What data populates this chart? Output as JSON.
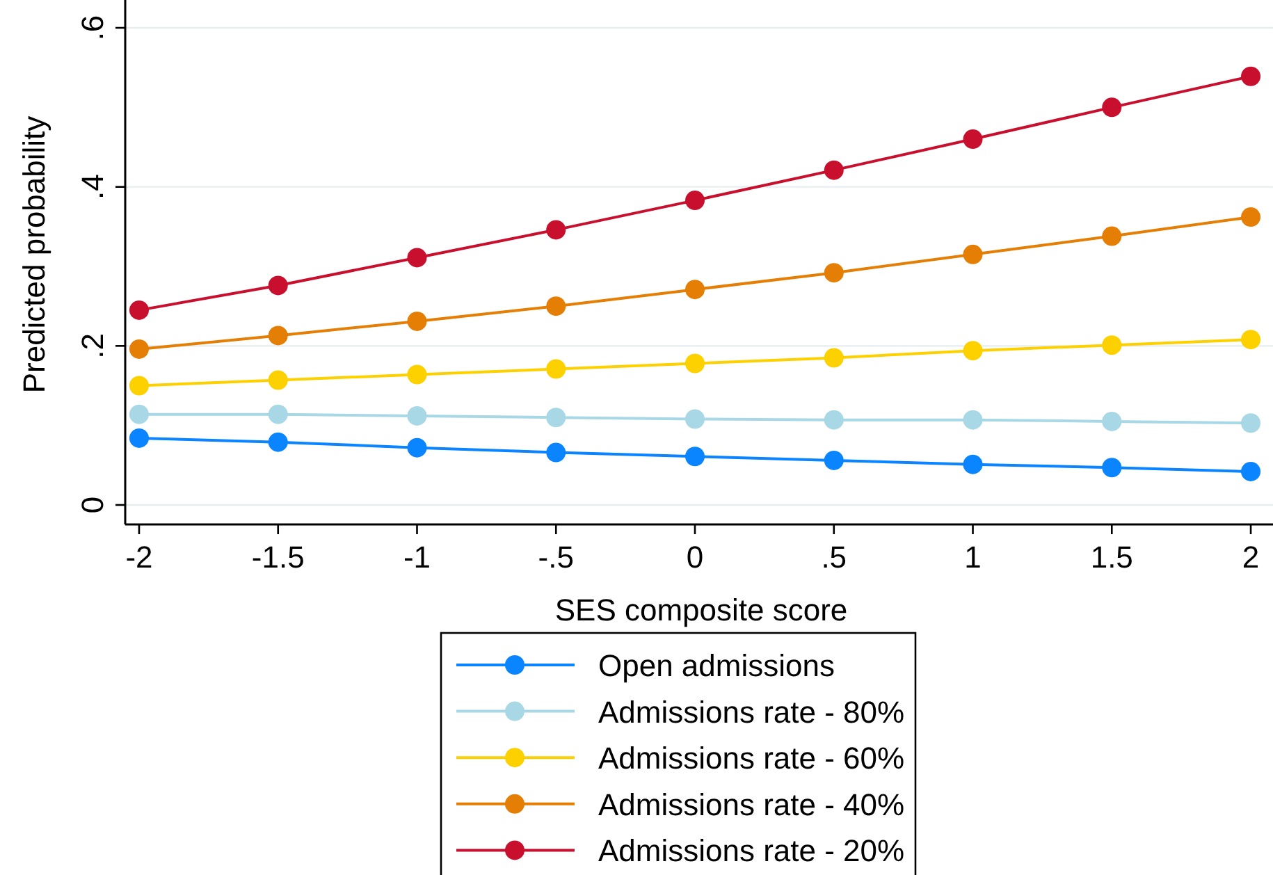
{
  "chart_data": {
    "type": "line",
    "xlabel": "SES composite score",
    "ylabel": "Predicted probability",
    "x": [
      -2,
      -1.5,
      -1,
      -0.5,
      0,
      0.5,
      1,
      1.5,
      2
    ],
    "xlim": [
      -2.05,
      2.08
    ],
    "ylim": [
      -0.0245,
      0.635
    ],
    "xticks": [
      -2,
      -1.5,
      -1,
      {
        "value": -0.5,
        "label": "-.5"
      },
      0,
      {
        "value": 0.5,
        "label": ".5"
      },
      1,
      1.5,
      2
    ],
    "yticks": [
      0,
      {
        "value": 0.2,
        "label": ".2"
      },
      {
        "value": 0.4,
        "label": ".4"
      },
      {
        "value": 0.6,
        "label": ".6"
      }
    ],
    "grid": "y",
    "legend": "bottom",
    "marker": "circle",
    "line_style": "solid",
    "series": [
      {
        "name": "Open admissions",
        "color": "#0a84ff",
        "values": [
          0.084,
          0.079,
          0.072,
          0.066,
          0.061,
          0.056,
          0.051,
          0.047,
          0.042
        ]
      },
      {
        "name": "Admissions rate - 80%",
        "color": "#a8d8e6",
        "values": [
          0.114,
          0.114,
          0.112,
          0.11,
          0.108,
          0.107,
          0.107,
          0.105,
          0.103
        ]
      },
      {
        "name": "Admissions rate - 60%",
        "color": "#fdd000",
        "values": [
          0.15,
          0.157,
          0.164,
          0.171,
          0.178,
          0.185,
          0.194,
          0.201,
          0.208
        ]
      },
      {
        "name": "Admissions rate - 40%",
        "color": "#e57e05",
        "values": [
          0.196,
          0.213,
          0.231,
          0.25,
          0.271,
          0.292,
          0.315,
          0.338,
          0.362
        ]
      },
      {
        "name": "Admissions rate - 20%",
        "color": "#c8102e",
        "values": [
          0.245,
          0.276,
          0.311,
          0.346,
          0.383,
          0.421,
          0.46,
          0.5,
          0.539
        ]
      }
    ]
  }
}
